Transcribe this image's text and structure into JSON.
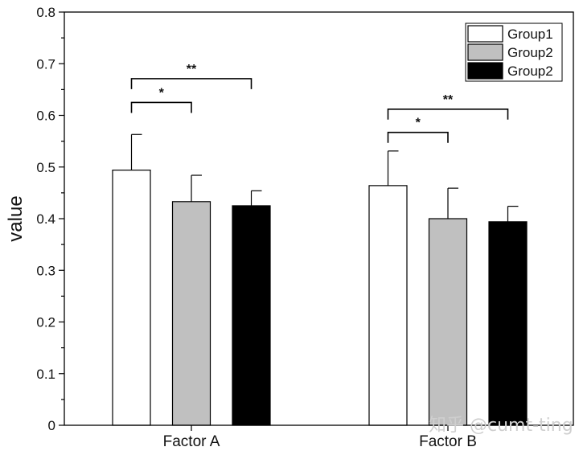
{
  "chart_data": {
    "type": "bar",
    "title": "",
    "xlabel": "",
    "ylabel": "value",
    "ylim": [
      0,
      0.8
    ],
    "yticks": [
      0,
      0.1,
      0.2,
      0.3,
      0.4,
      0.5,
      0.6,
      0.7,
      0.8
    ],
    "ytick_labels": [
      "0",
      "0.1",
      "0.2",
      "0.3",
      "0.4",
      "0.5",
      "0.6",
      "0.7",
      "0.8"
    ],
    "categories": [
      "Factor A",
      "Factor B"
    ],
    "series": [
      {
        "name": "Group1",
        "color": "#ffffff",
        "values": [
          0.494,
          0.464
        ],
        "errors": [
          0.069,
          0.067
        ]
      },
      {
        "name": "Group2",
        "color": "#c0c0c0",
        "values": [
          0.433,
          0.4
        ],
        "errors": [
          0.051,
          0.059
        ]
      },
      {
        "name": "Group2",
        "color": "#000000",
        "values": [
          0.425,
          0.394
        ],
        "errors": [
          0.029,
          0.03
        ]
      }
    ],
    "significance": [
      {
        "category": 0,
        "from_series": 0,
        "to_series": 1,
        "level": 0.625,
        "label": "*"
      },
      {
        "category": 0,
        "from_series": 0,
        "to_series": 2,
        "level": 0.671,
        "label": "**"
      },
      {
        "category": 1,
        "from_series": 0,
        "to_series": 1,
        "level": 0.567,
        "label": "*"
      },
      {
        "category": 1,
        "from_series": 0,
        "to_series": 2,
        "level": 0.612,
        "label": "**"
      }
    ],
    "legend_position": "top-right",
    "grid": false
  },
  "watermark": {
    "text": "知乎 @cumt-ting"
  }
}
